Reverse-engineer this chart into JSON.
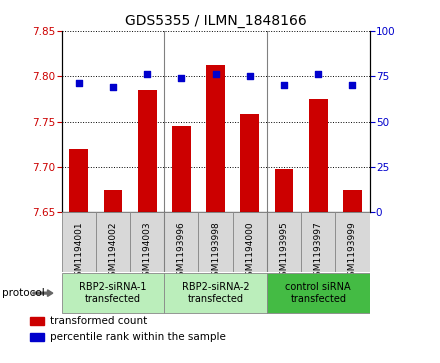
{
  "title": "GDS5355 / ILMN_1848166",
  "samples": [
    "GSM1194001",
    "GSM1194002",
    "GSM1194003",
    "GSM1193996",
    "GSM1193998",
    "GSM1194000",
    "GSM1193995",
    "GSM1193997",
    "GSM1193999"
  ],
  "bar_values": [
    7.72,
    7.675,
    7.785,
    7.745,
    7.812,
    7.758,
    7.698,
    7.775,
    7.675
  ],
  "percentile_values": [
    71,
    69,
    76,
    74,
    76,
    75,
    70,
    76,
    70
  ],
  "ylim_left": [
    7.65,
    7.85
  ],
  "ylim_right": [
    0,
    100
  ],
  "yticks_left": [
    7.65,
    7.7,
    7.75,
    7.8,
    7.85
  ],
  "yticks_right": [
    0,
    25,
    50,
    75,
    100
  ],
  "bar_color": "#CC0000",
  "dot_color": "#0000CC",
  "groups": [
    {
      "label": "RBP2-siRNA-1\ntransfected",
      "start": 0,
      "end": 3,
      "color": "#bbeebb"
    },
    {
      "label": "RBP2-siRNA-2\ntransfected",
      "start": 3,
      "end": 6,
      "color": "#bbeebb"
    },
    {
      "label": "control siRNA\ntransfected",
      "start": 6,
      "end": 9,
      "color": "#44bb44"
    }
  ],
  "protocol_label": "protocol",
  "bar_width": 0.55,
  "sample_bg": "#d8d8d8",
  "plot_bg": "#ffffff",
  "legend_items": [
    {
      "color": "#CC0000",
      "label": "transformed count"
    },
    {
      "color": "#0000CC",
      "label": "percentile rank within the sample"
    }
  ]
}
